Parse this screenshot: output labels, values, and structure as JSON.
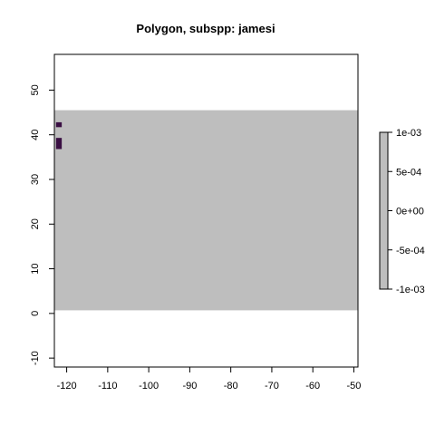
{
  "chart_data": {
    "type": "heatmap",
    "title": "Polygon, subspp: jamesi",
    "xlabel": "",
    "ylabel": "",
    "xlim": [
      -123,
      -49
    ],
    "ylim": [
      -12,
      58
    ],
    "x_ticks": [
      -120,
      -110,
      -100,
      -90,
      -80,
      -70,
      -60,
      -50
    ],
    "y_ticks": [
      -10,
      0,
      10,
      20,
      30,
      40,
      50
    ],
    "raster_extent": {
      "x": [
        -123,
        -49
      ],
      "y": [
        0.7,
        45.5
      ]
    },
    "background_value": 0,
    "background_color": "#bebebe",
    "cells": [
      {
        "x0": -122.6,
        "x1": -121.2,
        "y0": 41.7,
        "y1": 42.8,
        "color": "#3a0f43"
      },
      {
        "x0": -122.6,
        "x1": -121.2,
        "y0": 36.8,
        "y1": 39.3,
        "color": "#3a0f43"
      }
    ],
    "legend": {
      "position": "right",
      "ticks": [
        "1e-03",
        "5e-04",
        "0e+00",
        "-5e-04",
        "-1e-03"
      ],
      "tick_values": [
        0.001,
        0.0005,
        0,
        -0.0005,
        -0.001
      ],
      "fill_color": "#bebebe"
    }
  }
}
